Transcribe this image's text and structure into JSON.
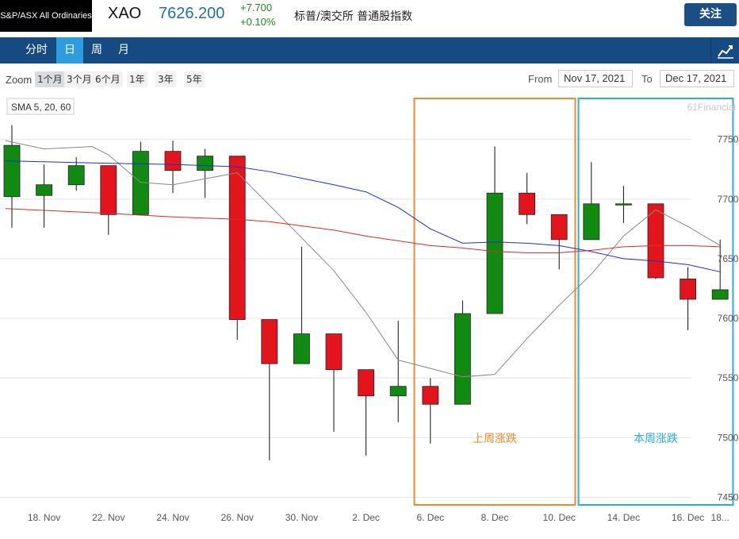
{
  "header": {
    "logo_text": "S&P/ASX All Ordinaries",
    "symbol": "XAO",
    "price": "7626.200",
    "change": "+7.700",
    "change_pct": "+0.10%",
    "name": "标普/澳交所 普通股指数",
    "follow_label": "关注",
    "price_color": "#1f6fae",
    "change_color": "#1a8f1a"
  },
  "tabs": [
    {
      "label": "分时",
      "active": false
    },
    {
      "label": "日",
      "active": true
    },
    {
      "label": "周",
      "active": false
    },
    {
      "label": "月",
      "active": false
    }
  ],
  "zoom": {
    "label": "Zoom",
    "options": [
      "1个月",
      "3个月",
      "6个月",
      "1年",
      "3年",
      "5年"
    ],
    "selected": "1个月",
    "from_label": "From",
    "from_value": "Nov 17, 2021",
    "to_label": "To",
    "to_value": "Dec 17, 2021"
  },
  "chart_data": {
    "type": "candlestick",
    "indicator_label": "SMA 5, 20, 60",
    "watermark": "61Financial",
    "y_ticks": [
      7750,
      7700,
      7650,
      7600,
      7550,
      7500,
      7450
    ],
    "ylim": [
      7443,
      7787
    ],
    "x_labels": [
      {
        "index": 1,
        "label": "18. Nov"
      },
      {
        "index": 3,
        "label": "22. Nov"
      },
      {
        "index": 5,
        "label": "24. Nov"
      },
      {
        "index": 7,
        "label": "26. Nov"
      },
      {
        "index": 9,
        "label": "30. Nov"
      },
      {
        "index": 11,
        "label": "2. Dec"
      },
      {
        "index": 13,
        "label": "6. Dec"
      },
      {
        "index": 15,
        "label": "8. Dec"
      },
      {
        "index": 17,
        "label": "10. Dec"
      },
      {
        "index": 19,
        "label": "14. Dec"
      },
      {
        "index": 21,
        "label": "16. Dec"
      },
      {
        "index": 22,
        "label": "18..."
      }
    ],
    "candles": [
      {
        "o": 7702,
        "h": 7762,
        "l": 7676,
        "c": 7745
      },
      {
        "o": 7703,
        "h": 7729,
        "l": 7676,
        "c": 7712
      },
      {
        "o": 7712,
        "h": 7735,
        "l": 7707,
        "c": 7728
      },
      {
        "o": 7728,
        "h": 7728,
        "l": 7670,
        "c": 7687
      },
      {
        "o": 7687,
        "h": 7748,
        "l": 7687,
        "c": 7740
      },
      {
        "o": 7740,
        "h": 7749,
        "l": 7705,
        "c": 7724
      },
      {
        "o": 7724,
        "h": 7742,
        "l": 7701,
        "c": 7736
      },
      {
        "o": 7736,
        "h": 7736,
        "l": 7582,
        "c": 7599
      },
      {
        "o": 7599,
        "h": 7599,
        "l": 7481,
        "c": 7562
      },
      {
        "o": 7562,
        "h": 7660,
        "l": 7562,
        "c": 7587
      },
      {
        "o": 7587,
        "h": 7587,
        "l": 7505,
        "c": 7557
      },
      {
        "o": 7557,
        "h": 7557,
        "l": 7485,
        "c": 7535
      },
      {
        "o": 7535,
        "h": 7598,
        "l": 7513,
        "c": 7543
      },
      {
        "o": 7543,
        "h": 7550,
        "l": 7495,
        "c": 7528
      },
      {
        "o": 7528,
        "h": 7615,
        "l": 7528,
        "c": 7604
      },
      {
        "o": 7604,
        "h": 7744,
        "l": 7604,
        "c": 7705
      },
      {
        "o": 7705,
        "h": 7722,
        "l": 7679,
        "c": 7687
      },
      {
        "o": 7687,
        "h": 7687,
        "l": 7641,
        "c": 7666
      },
      {
        "o": 7666,
        "h": 7731,
        "l": 7666,
        "c": 7696
      },
      {
        "o": 7696,
        "h": 7711,
        "l": 7680,
        "c": 7696
      },
      {
        "o": 7696,
        "h": 7696,
        "l": 7633,
        "c": 7634
      },
      {
        "o": 7633,
        "h": 7643,
        "l": 7590,
        "c": 7616
      },
      {
        "o": 7616,
        "h": 7666,
        "l": 7616,
        "c": 7624
      }
    ],
    "series": [
      {
        "name": "SMA 5",
        "color": "#888888",
        "points": [
          [
            -0.2,
            7749
          ],
          [
            1,
            7742
          ],
          [
            2.5,
            7744
          ],
          [
            3,
            7737
          ],
          [
            4,
            7714
          ],
          [
            5,
            7712
          ],
          [
            7,
            7722
          ],
          [
            8.8,
            7673
          ],
          [
            10,
            7640
          ],
          [
            11,
            7605
          ],
          [
            12,
            7565
          ],
          [
            13,
            7558
          ],
          [
            14,
            7551
          ],
          [
            15,
            7553
          ],
          [
            16,
            7583
          ],
          [
            17,
            7611
          ],
          [
            18,
            7637
          ],
          [
            19,
            7669
          ],
          [
            20,
            7691
          ],
          [
            21,
            7677
          ],
          [
            22,
            7661
          ]
        ]
      },
      {
        "name": "SMA 20",
        "color": "#1c2fd4",
        "points": [
          [
            -0.2,
            7732
          ],
          [
            3,
            7730
          ],
          [
            5,
            7729
          ],
          [
            7,
            7727
          ],
          [
            8,
            7723
          ],
          [
            10,
            7712
          ],
          [
            11,
            7706
          ],
          [
            12,
            7693
          ],
          [
            13,
            7675
          ],
          [
            14,
            7663
          ],
          [
            15,
            7664
          ],
          [
            16,
            7663
          ],
          [
            17,
            7661
          ],
          [
            18,
            7656
          ],
          [
            19,
            7650
          ],
          [
            20,
            7648
          ],
          [
            21,
            7645
          ],
          [
            22,
            7639
          ]
        ]
      },
      {
        "name": "SMA 60",
        "color": "#e02a2a",
        "points": [
          [
            -0.2,
            7692
          ],
          [
            3,
            7688
          ],
          [
            5,
            7685
          ],
          [
            7,
            7683
          ],
          [
            8,
            7681
          ],
          [
            10,
            7674
          ],
          [
            11,
            7669
          ],
          [
            12,
            7665
          ],
          [
            13,
            7661
          ],
          [
            14,
            7659
          ],
          [
            15,
            7656
          ],
          [
            16,
            7655
          ],
          [
            17,
            7655
          ],
          [
            18,
            7657
          ],
          [
            19,
            7660
          ],
          [
            20,
            7661
          ],
          [
            21,
            7661
          ],
          [
            22,
            7660
          ]
        ]
      }
    ],
    "annotations": [
      {
        "label": "上周涨跌",
        "from_index": 12.5,
        "to_index": 17.5,
        "color": "#f28a2e"
      },
      {
        "label": "本周涨跌",
        "from_index": 17.6,
        "to_index": 22.4,
        "color": "#2ab0d8"
      }
    ],
    "up_color": "#118a11",
    "down_color": "#e3141b"
  }
}
